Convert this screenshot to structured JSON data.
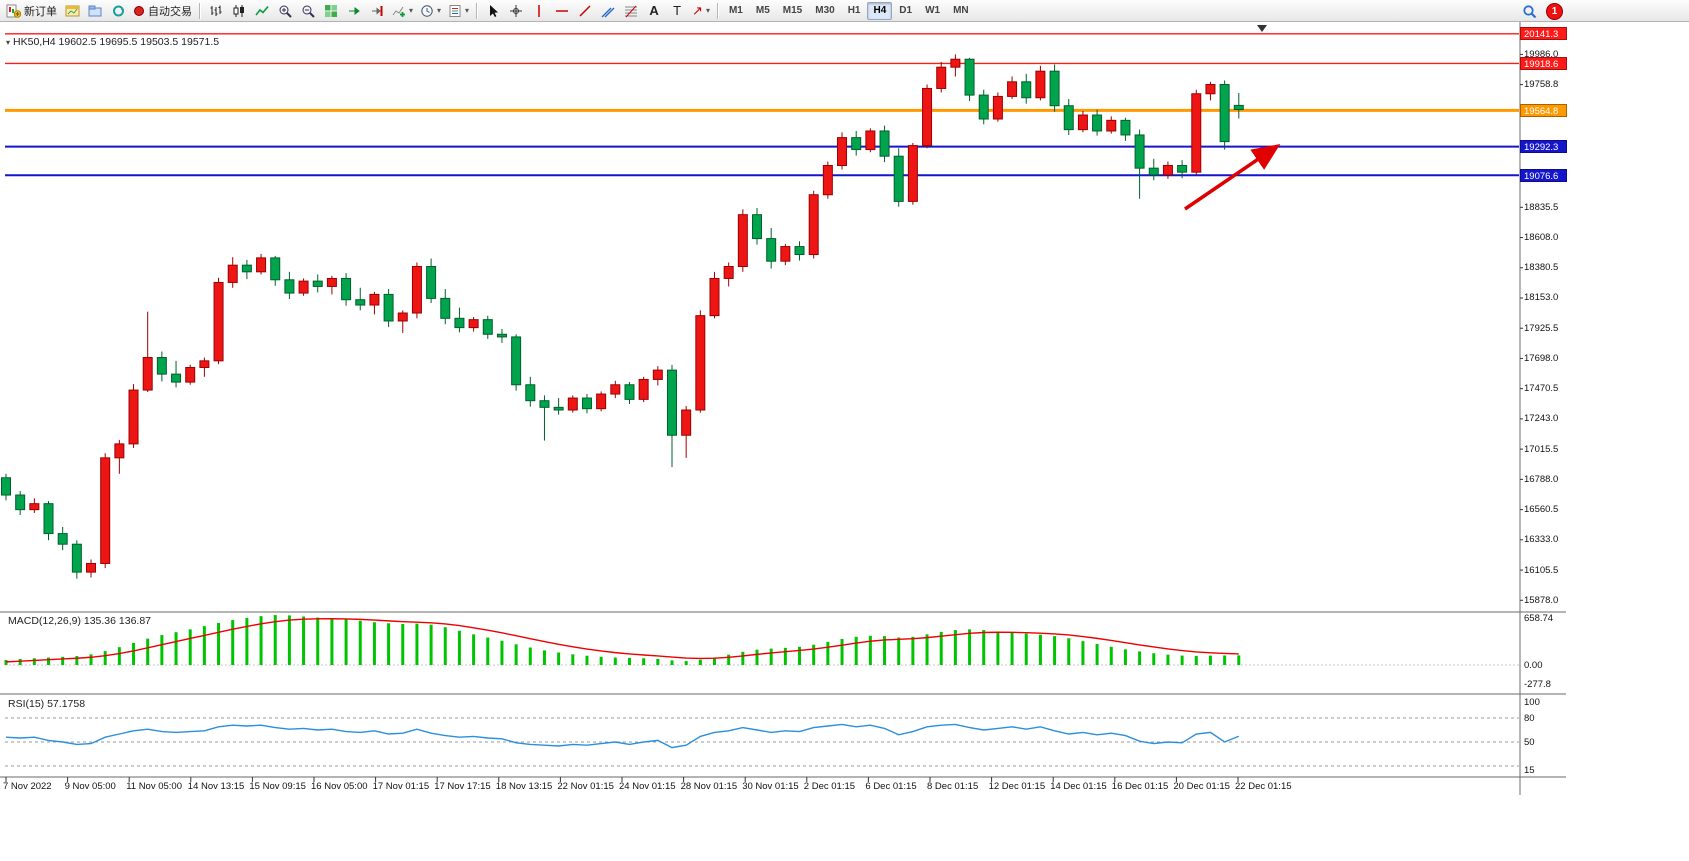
{
  "toolbar": {
    "new_order_label": "新订单",
    "autotrade_label": "自动交易",
    "timeframes": [
      "M1",
      "M5",
      "M15",
      "M30",
      "H1",
      "H4",
      "D1",
      "W1",
      "MN"
    ],
    "active_timeframe": "H4",
    "notification_count": "1",
    "text_tool_label": "A",
    "label_tool_label": "T",
    "arrow_tool_glyph": "↗"
  },
  "chart": {
    "quote_line": "HK50,H4 19602.5 19695.5 19503.5 19571.5",
    "symbol": "HK50",
    "timeframe": "H4"
  },
  "panes": {
    "macd_label": "MACD(12,26,9) 135.36 136.87",
    "rsi_label": "RSI(15) 57.1758"
  },
  "chart_data": {
    "type": "candlestick",
    "symbol": "HK50",
    "timeframe": "H4",
    "title": "HK50 H4 candlestick chart with MACD and RSI",
    "ohlc_display": {
      "open": "19602.5",
      "high": "19695.5",
      "low": "19503.5",
      "close": "19571.5"
    },
    "ylim": [
      15790,
      20200
    ],
    "colors": {
      "up": "#ee1515",
      "up_border": "#9c0000",
      "down": "#00a44c",
      "down_border": "#00602c",
      "level_red": "#ff1a1a",
      "level_orange": "#ff9900",
      "level_blue": "#1515cc",
      "macd_hist": "#00c400",
      "macd_signal": "#ee0000",
      "rsi_line": "#2b8fdd",
      "annotation": "#e00000"
    },
    "levels": [
      {
        "label": "20141.3",
        "price": 20141.3,
        "color": "#ff1a1a",
        "width": 1.4
      },
      {
        "label": "19918.6",
        "price": 19918.6,
        "color": "#ff1a1a",
        "width": 1.4
      },
      {
        "label": "19564.8",
        "price": 19564.8,
        "color": "#ff9900",
        "width": 3
      },
      {
        "label": "19292.3",
        "price": 19292.3,
        "color": "#1515cc",
        "width": 2
      },
      {
        "label": "19076.6",
        "price": 19076.6,
        "color": "#1515cc",
        "width": 2
      }
    ],
    "price_ticks": [
      {
        "label": "19986.0",
        "value": 19986.0
      },
      {
        "label": "19758.8",
        "value": 19758.8
      },
      {
        "label": "18835.5",
        "value": 18835.5
      },
      {
        "label": "18608.0",
        "value": 18608.0
      },
      {
        "label": "18380.5",
        "value": 18380.5
      },
      {
        "label": "18153.0",
        "value": 18153.0
      },
      {
        "label": "17925.5",
        "value": 17925.5
      },
      {
        "label": "17698.0",
        "value": 17698.0
      },
      {
        "label": "17470.5",
        "value": 17470.5
      },
      {
        "label": "17243.0",
        "value": 17243.0
      },
      {
        "label": "17015.5",
        "value": 17015.5
      },
      {
        "label": "16788.0",
        "value": 16788.0
      },
      {
        "label": "16560.5",
        "value": 16560.5
      },
      {
        "label": "16333.0",
        "value": 16333.0
      },
      {
        "label": "16105.5",
        "value": 16105.5
      },
      {
        "label": "15878.0",
        "value": 15878.0
      }
    ],
    "macd_axis": [
      {
        "label": "658.74",
        "value": 658.74
      },
      {
        "label": "0.00",
        "value": 0
      },
      {
        "label": "-277.8",
        "value": -277.8
      }
    ],
    "rsi_axis": [
      {
        "label": "100",
        "value": 100
      },
      {
        "label": "80",
        "value": 80
      },
      {
        "label": "50",
        "value": 50
      },
      {
        "label": "15",
        "value": 15
      }
    ],
    "rsi_dashed_levels": [
      80,
      50,
      20
    ],
    "time_labels": [
      "7 Nov 2022",
      "9 Nov 05:00",
      "11 Nov 05:00",
      "14 Nov 13:15",
      "15 Nov 09:15",
      "16 Nov 05:00",
      "17 Nov 01:15",
      "17 Nov 17:15",
      "18 Nov 13:15",
      "22 Nov 01:15",
      "24 Nov 01:15",
      "28 Nov 01:15",
      "30 Nov 01:15",
      "2 Dec 01:15",
      "6 Dec 01:15",
      "8 Dec 01:15",
      "12 Dec 01:15",
      "14 Dec 01:15",
      "16 Dec 01:15",
      "20 Dec 01:15",
      "22 Dec 01:15"
    ],
    "candles": [
      [
        16800,
        16830,
        16630,
        16670
      ],
      [
        16670,
        16700,
        16520,
        16560
      ],
      [
        16560,
        16645,
        16535,
        16605
      ],
      [
        16605,
        16625,
        16330,
        16380
      ],
      [
        16380,
        16430,
        16255,
        16300
      ],
      [
        16300,
        16330,
        16040,
        16090
      ],
      [
        16090,
        16185,
        16050,
        16155
      ],
      [
        16155,
        16985,
        16120,
        16950
      ],
      [
        16950,
        17085,
        16830,
        17055
      ],
      [
        17055,
        17505,
        17025,
        17460
      ],
      [
        17460,
        18050,
        17445,
        17705
      ],
      [
        17705,
        17750,
        17525,
        17580
      ],
      [
        17580,
        17680,
        17480,
        17520
      ],
      [
        17520,
        17650,
        17500,
        17630
      ],
      [
        17630,
        17705,
        17560,
        17680
      ],
      [
        17680,
        18305,
        17655,
        18270
      ],
      [
        18270,
        18460,
        18230,
        18400
      ],
      [
        18400,
        18440,
        18295,
        18350
      ],
      [
        18350,
        18485,
        18330,
        18455
      ],
      [
        18455,
        18470,
        18245,
        18290
      ],
      [
        18290,
        18350,
        18145,
        18190
      ],
      [
        18190,
        18300,
        18170,
        18280
      ],
      [
        18280,
        18330,
        18195,
        18240
      ],
      [
        18240,
        18320,
        18180,
        18300
      ],
      [
        18300,
        18340,
        18095,
        18140
      ],
      [
        18140,
        18230,
        18060,
        18100
      ],
      [
        18100,
        18200,
        18030,
        18180
      ],
      [
        18180,
        18220,
        17935,
        17980
      ],
      [
        17980,
        18060,
        17890,
        18040
      ],
      [
        18040,
        18420,
        18000,
        18390
      ],
      [
        18390,
        18450,
        18115,
        18150
      ],
      [
        18150,
        18220,
        17955,
        18000
      ],
      [
        18000,
        18080,
        17895,
        17930
      ],
      [
        17930,
        18010,
        17900,
        17990
      ],
      [
        17990,
        18020,
        17845,
        17880
      ],
      [
        17880,
        17920,
        17815,
        17860
      ],
      [
        17860,
        17880,
        17455,
        17500
      ],
      [
        17500,
        17560,
        17335,
        17380
      ],
      [
        17380,
        17420,
        17080,
        17330
      ],
      [
        17330,
        17400,
        17275,
        17310
      ],
      [
        17310,
        17420,
        17290,
        17400
      ],
      [
        17400,
        17430,
        17285,
        17320
      ],
      [
        17320,
        17450,
        17300,
        17430
      ],
      [
        17430,
        17530,
        17400,
        17500
      ],
      [
        17500,
        17520,
        17355,
        17390
      ],
      [
        17390,
        17560,
        17370,
        17540
      ],
      [
        17540,
        17640,
        17495,
        17610
      ],
      [
        17610,
        17650,
        16880,
        17120
      ],
      [
        17120,
        17340,
        16950,
        17310
      ],
      [
        17310,
        18060,
        17290,
        18020
      ],
      [
        18020,
        18350,
        18000,
        18300
      ],
      [
        18300,
        18420,
        18240,
        18390
      ],
      [
        18390,
        18820,
        18350,
        18780
      ],
      [
        18780,
        18830,
        18555,
        18600
      ],
      [
        18600,
        18680,
        18375,
        18430
      ],
      [
        18430,
        18560,
        18400,
        18540
      ],
      [
        18540,
        18580,
        18435,
        18480
      ],
      [
        18480,
        18960,
        18450,
        18930
      ],
      [
        18930,
        19180,
        18900,
        19150
      ],
      [
        19150,
        19400,
        19120,
        19360
      ],
      [
        19360,
        19410,
        19225,
        19270
      ],
      [
        19270,
        19430,
        19250,
        19410
      ],
      [
        19410,
        19450,
        19175,
        19220
      ],
      [
        19220,
        19280,
        18840,
        18880
      ],
      [
        18880,
        19320,
        18855,
        19300
      ],
      [
        19300,
        19760,
        19280,
        19730
      ],
      [
        19730,
        19930,
        19700,
        19890
      ],
      [
        19890,
        19986,
        19820,
        19950
      ],
      [
        19950,
        19960,
        19635,
        19680
      ],
      [
        19680,
        19720,
        19460,
        19500
      ],
      [
        19500,
        19700,
        19480,
        19670
      ],
      [
        19670,
        19820,
        19650,
        19780
      ],
      [
        19780,
        19840,
        19615,
        19660
      ],
      [
        19660,
        19900,
        19640,
        19860
      ],
      [
        19860,
        19910,
        19555,
        19600
      ],
      [
        19600,
        19650,
        19380,
        19420
      ],
      [
        19420,
        19560,
        19400,
        19530
      ],
      [
        19530,
        19570,
        19375,
        19410
      ],
      [
        19410,
        19520,
        19390,
        19490
      ],
      [
        19490,
        19510,
        19335,
        19380
      ],
      [
        19380,
        19420,
        18900,
        19130
      ],
      [
        19130,
        19200,
        19040,
        19080
      ],
      [
        19080,
        19180,
        19050,
        19150
      ],
      [
        19150,
        19190,
        19055,
        19100
      ],
      [
        19100,
        19720,
        19080,
        19690
      ],
      [
        19690,
        19780,
        19640,
        19760
      ],
      [
        19760,
        19790,
        19270,
        19330
      ],
      [
        19602.5,
        19695.5,
        19503.5,
        19571.5
      ]
    ],
    "macd_histogram": [
      70,
      85,
      95,
      105,
      115,
      125,
      150,
      195,
      250,
      310,
      370,
      420,
      460,
      500,
      545,
      590,
      630,
      660,
      685,
      700,
      695,
      680,
      665,
      650,
      640,
      620,
      600,
      585,
      575,
      580,
      565,
      530,
      480,
      430,
      385,
      340,
      290,
      245,
      205,
      175,
      150,
      130,
      115,
      105,
      100,
      95,
      85,
      65,
      55,
      75,
      105,
      145,
      185,
      215,
      230,
      240,
      255,
      285,
      325,
      365,
      395,
      410,
      405,
      385,
      395,
      430,
      465,
      490,
      500,
      490,
      470,
      455,
      440,
      425,
      405,
      375,
      335,
      295,
      255,
      220,
      190,
      165,
      145,
      132,
      128,
      132,
      134,
      135.36
    ],
    "rsi": [
      56,
      55,
      56,
      52,
      50,
      47,
      48,
      56,
      60,
      64,
      66,
      63,
      62,
      63,
      64,
      69,
      71,
      70,
      71,
      68,
      66,
      67,
      65,
      66,
      63,
      62,
      64,
      60,
      61,
      66,
      61,
      58,
      56,
      57,
      55,
      54,
      49,
      47,
      46,
      45,
      47,
      46,
      48,
      50,
      47,
      50,
      52,
      43,
      46,
      57,
      62,
      64,
      68,
      65,
      62,
      64,
      63,
      68,
      70,
      72,
      69,
      71,
      67,
      59,
      63,
      69,
      71,
      72,
      68,
      65,
      67,
      69,
      66,
      69,
      64,
      60,
      62,
      59,
      61,
      58,
      51,
      48,
      50,
      49,
      60,
      62,
      50,
      57.18
    ],
    "annotations": [
      {
        "type": "arrow",
        "color": "#e00000",
        "note": "red up-right arrow pointing at 19292.3 level"
      }
    ]
  }
}
